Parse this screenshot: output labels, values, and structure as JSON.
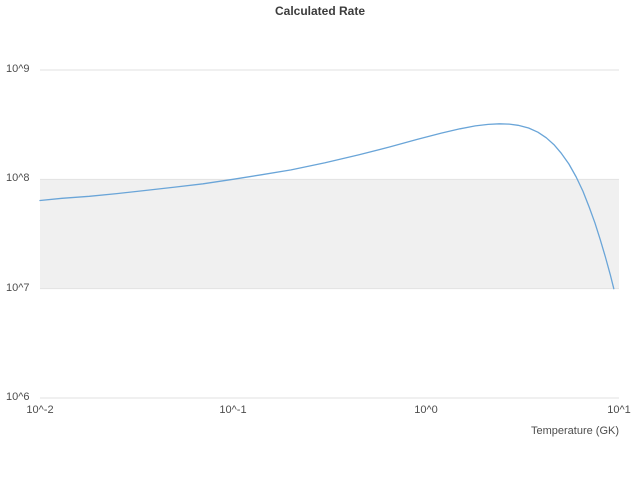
{
  "title": "Calculated Rate",
  "xlabel": "Temperature (GK)",
  "colors": {
    "line": "#6aa5d8",
    "band": "#f0f0f0",
    "grid": "#e2e2e2",
    "tick_text": "#4d4d4d",
    "title_text": "#3c3c3c",
    "background": "#ffffff"
  },
  "axes": {
    "x_ticks": [
      {
        "label": "10^-2",
        "value": 0.01
      },
      {
        "label": "10^-1",
        "value": 0.1
      },
      {
        "label": "10^0",
        "value": 1
      },
      {
        "label": "10^1",
        "value": 10
      }
    ],
    "y_ticks": [
      {
        "label": "10^6",
        "value": 1000000.0
      },
      {
        "label": "10^7",
        "value": 10000000.0
      },
      {
        "label": "10^8",
        "value": 100000000.0
      },
      {
        "label": "10^9",
        "value": 1000000000.0
      }
    ]
  },
  "chart_data": {
    "type": "line",
    "title": "Calculated Rate",
    "xlabel": "Temperature (GK)",
    "ylabel": "",
    "x_scale": "log",
    "y_scale": "log",
    "xlim": [
      0.01,
      10
    ],
    "ylim": [
      1000000.0,
      1000000000.0
    ],
    "grid": "horizontal-decades",
    "legend": "none",
    "shaded_bands": [
      {
        "y_from": 10000000.0,
        "y_to": 100000000.0
      }
    ],
    "series": [
      {
        "name": "Calculated Rate",
        "x": [
          0.01,
          0.013,
          0.018,
          0.025,
          0.035,
          0.05,
          0.07,
          0.1,
          0.14,
          0.2,
          0.3,
          0.45,
          0.65,
          0.9,
          1.2,
          1.5,
          1.8,
          2.1,
          2.4,
          2.7,
          3.0,
          3.4,
          3.8,
          4.2,
          4.6,
          5.0,
          5.5,
          6.0,
          6.5,
          7.0,
          7.5,
          8.0,
          8.5,
          9.0,
          9.4
        ],
        "y": [
          64000000.0,
          67000000.0,
          70000000.0,
          74000000.0,
          79000000.0,
          85000000.0,
          91000000.0,
          100000000.0,
          110000000.0,
          122000000.0,
          142000000.0,
          168000000.0,
          198000000.0,
          232000000.0,
          265000000.0,
          290000000.0,
          308000000.0,
          318000000.0,
          322000000.0,
          320000000.0,
          312000000.0,
          295000000.0,
          270000000.0,
          240000000.0,
          208000000.0,
          175000000.0,
          138000000.0,
          105000000.0,
          78000000.0,
          56000000.0,
          40000000.0,
          28000000.0,
          19500000.0,
          13500000.0,
          10000000.0
        ]
      }
    ]
  }
}
